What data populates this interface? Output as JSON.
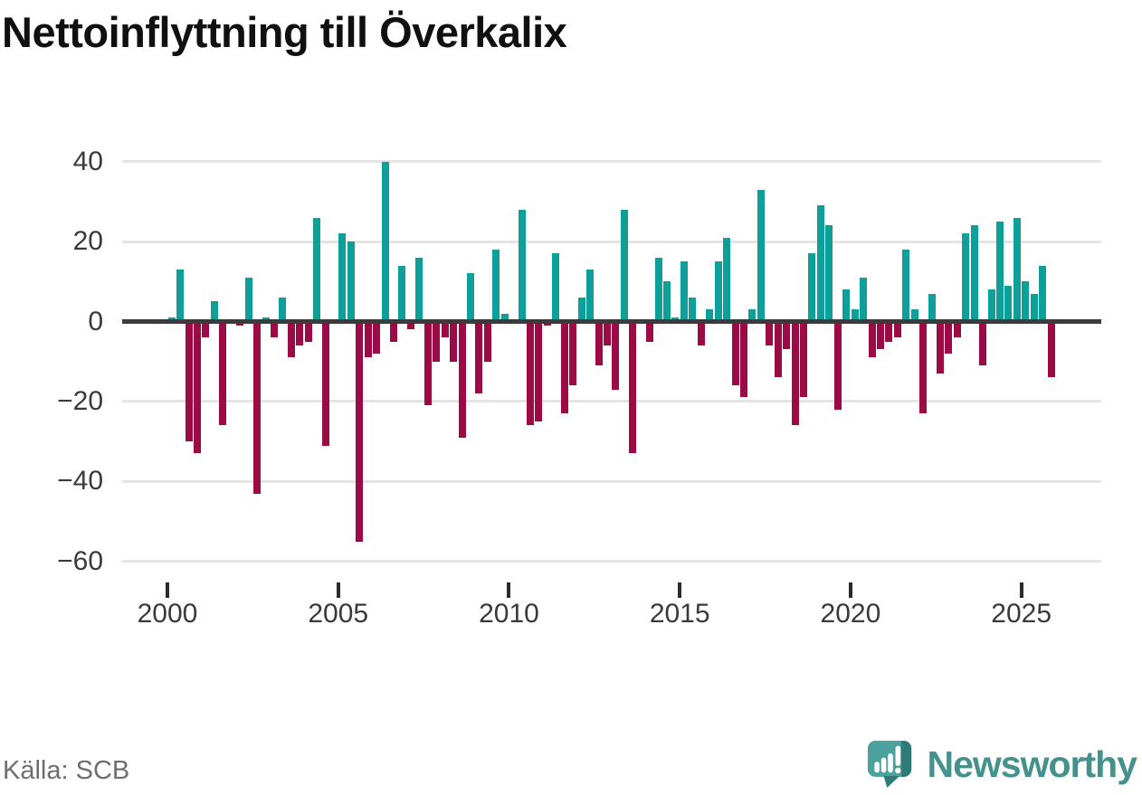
{
  "title": "Nettoinflyttning till Överkalix",
  "source": "Källa: SCB",
  "branding": {
    "name": "Newsworthy"
  },
  "colors": {
    "positive": "#0da09b",
    "negative": "#9c0b45",
    "axis": "#3b3b3b",
    "grid": "#e4e4e4",
    "tick_label": "#3a3a3a",
    "muted_text": "#6d6d75",
    "logo_main": "#4ba19c",
    "logo_dark": "#2e7b77",
    "wordmark": "#44918e"
  },
  "chart_data": {
    "type": "bar",
    "title": "Nettoinflyttning till Överkalix",
    "xlabel": "",
    "ylabel": "",
    "frequency": "quarterly",
    "start_year": 2000,
    "start_quarter": 1,
    "ylim": [
      -62,
      42
    ],
    "grid": true,
    "legend": "none",
    "y_tick_values": [
      40,
      20,
      0,
      -20,
      -40,
      -60
    ],
    "x_tick_labels": [
      "2000",
      "2005",
      "2010",
      "2015",
      "2020",
      "2025"
    ],
    "values": [
      1,
      13,
      -30,
      -33,
      -4,
      5,
      -26,
      0,
      -1,
      11,
      -43,
      1,
      -4,
      6,
      -9,
      -6,
      -5,
      26,
      -31,
      0,
      22,
      20,
      -55,
      -9,
      -8,
      40,
      -5,
      14,
      -2,
      16,
      -21,
      -10,
      -4,
      -10,
      -29,
      12,
      -18,
      -10,
      18,
      2,
      0,
      28,
      -26,
      -25,
      -1,
      17,
      -23,
      -16,
      6,
      13,
      -11,
      -6,
      -17,
      28,
      -33,
      0,
      -5,
      16,
      10,
      1,
      15,
      6,
      -6,
      3,
      15,
      21,
      -16,
      -19,
      3,
      33,
      -6,
      -14,
      -7,
      -26,
      -19,
      17,
      29,
      24,
      -22,
      8,
      3,
      11,
      -9,
      -7,
      -5,
      -4,
      18,
      3,
      -23,
      7,
      -13,
      -8,
      -4,
      22,
      24,
      -11,
      8,
      25,
      9,
      26,
      10,
      7,
      14,
      -14
    ]
  }
}
